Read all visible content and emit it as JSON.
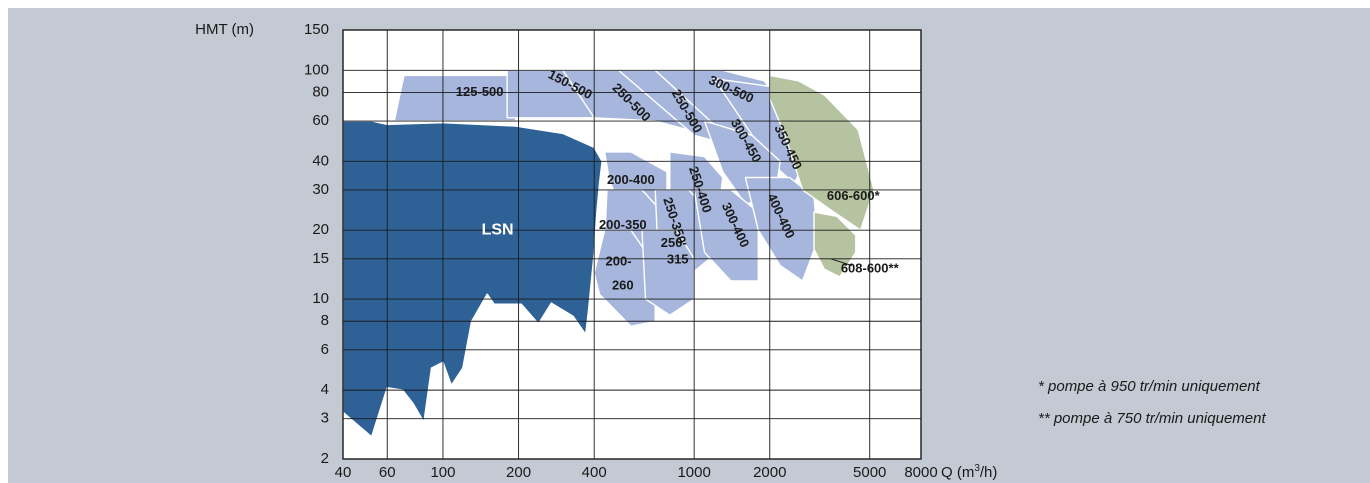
{
  "chart_data": {
    "type": "area",
    "title": "",
    "ylabel": "HMT (m)",
    "xlabel_prefix": "Q (m",
    "xlabel_sup": "3",
    "xlabel_suffix": "/h)",
    "xscale": "log",
    "yscale": "log",
    "xlim": [
      40,
      8000
    ],
    "ylim": [
      2,
      150
    ],
    "xticks": [
      "40",
      "60",
      "100",
      "200",
      "400",
      "1000",
      "2000",
      "5000",
      "8000"
    ],
    "yticks": [
      "150",
      "100",
      "80",
      "60",
      "40",
      "30",
      "20",
      "15",
      "10",
      "8",
      "6",
      "4",
      "3",
      "2"
    ],
    "grid": true,
    "colors": {
      "lsn": "#2e6297",
      "light": "#a6b6dc",
      "green": "#b6c3a0",
      "edge": "#ffffff"
    },
    "regions": [
      {
        "name": "125-500",
        "color": "light",
        "poly": [
          [
            52,
            60
          ],
          [
            64,
            60
          ],
          [
            70,
            95
          ],
          [
            195,
            95
          ],
          [
            195,
            60
          ],
          [
            52,
            60
          ]
        ]
      },
      {
        "name": "150-500",
        "color": "light",
        "poly": [
          [
            180,
            100
          ],
          [
            400,
            100
          ],
          [
            560,
            92
          ],
          [
            700,
            78
          ],
          [
            460,
            62
          ],
          [
            300,
            62
          ],
          [
            180,
            62
          ]
        ]
      },
      {
        "name": "250-500",
        "color": "light",
        "poly": [
          [
            300,
            100
          ],
          [
            600,
            100
          ],
          [
            900,
            92
          ],
          [
            1050,
            72
          ],
          [
            1000,
            54
          ],
          [
            700,
            60
          ],
          [
            400,
            62
          ]
        ]
      },
      {
        "name": "250-500b",
        "color": "light",
        "poly": [
          [
            500,
            100
          ],
          [
            900,
            100
          ],
          [
            1300,
            90
          ],
          [
            1500,
            70
          ],
          [
            1300,
            48
          ],
          [
            1000,
            52
          ]
        ]
      },
      {
        "name": "300-500",
        "color": "light",
        "poly": [
          [
            700,
            100
          ],
          [
            1300,
            100
          ],
          [
            1900,
            90
          ],
          [
            2300,
            68
          ],
          [
            2000,
            42
          ],
          [
            1600,
            50
          ],
          [
            1200,
            58
          ]
        ]
      },
      {
        "name": "350-450",
        "color": "light",
        "poly": [
          [
            1200,
            92
          ],
          [
            2000,
            85
          ],
          [
            2700,
            62
          ],
          [
            2900,
            44
          ],
          [
            2500,
            32
          ],
          [
            2000,
            40
          ]
        ]
      },
      {
        "name": "200-400",
        "color": "light",
        "poly": [
          [
            440,
            44
          ],
          [
            560,
            44
          ],
          [
            780,
            36
          ],
          [
            780,
            20
          ],
          [
            620,
            18
          ],
          [
            520,
            24
          ],
          [
            460,
            33
          ]
        ]
      },
      {
        "name": "250-400",
        "color": "light",
        "poly": [
          [
            800,
            44
          ],
          [
            1100,
            42
          ],
          [
            1300,
            34
          ],
          [
            1250,
            24
          ],
          [
            1000,
            20
          ],
          [
            800,
            26
          ]
        ]
      },
      {
        "name": "300-450",
        "color": "light",
        "poly": [
          [
            1100,
            60
          ],
          [
            1700,
            52
          ],
          [
            2200,
            40
          ],
          [
            2100,
            28
          ],
          [
            1600,
            26
          ],
          [
            1300,
            36
          ]
        ]
      },
      {
        "name": "200-350",
        "color": "light",
        "poly": [
          [
            450,
            30
          ],
          [
            620,
            30
          ],
          [
            800,
            22
          ],
          [
            800,
            13
          ],
          [
            620,
            10.5
          ],
          [
            500,
            13
          ],
          [
            440,
            18
          ]
        ]
      },
      {
        "name": "250-350",
        "color": "light",
        "poly": [
          [
            700,
            30
          ],
          [
            950,
            30
          ],
          [
            1150,
            24
          ],
          [
            1150,
            15
          ],
          [
            900,
            12
          ],
          [
            720,
            15
          ]
        ]
      },
      {
        "name": "300-400",
        "color": "light",
        "poly": [
          [
            1000,
            30
          ],
          [
            1400,
            30
          ],
          [
            1800,
            24
          ],
          [
            1800,
            12
          ],
          [
            1400,
            12
          ],
          [
            1100,
            16
          ]
        ]
      },
      {
        "name": "400-400",
        "color": "light",
        "poly": [
          [
            1600,
            34
          ],
          [
            2400,
            34
          ],
          [
            3000,
            28
          ],
          [
            3100,
            18
          ],
          [
            2700,
            12
          ],
          [
            2200,
            14
          ],
          [
            1800,
            20
          ]
        ]
      },
      {
        "name": "200-260",
        "color": "light",
        "poly": [
          [
            440,
            20
          ],
          [
            560,
            20
          ],
          [
            700,
            14
          ],
          [
            700,
            8
          ],
          [
            560,
            7.6
          ],
          [
            420,
            10.5
          ],
          [
            400,
            13
          ]
        ]
      },
      {
        "name": "250-315",
        "color": "light",
        "poly": [
          [
            620,
            20
          ],
          [
            850,
            20
          ],
          [
            1000,
            15
          ],
          [
            1000,
            10
          ],
          [
            800,
            8.5
          ],
          [
            640,
            10
          ]
        ]
      },
      {
        "name": "606-600*",
        "color": "green",
        "poly": [
          [
            2000,
            95
          ],
          [
            2600,
            90
          ],
          [
            3300,
            78
          ],
          [
            4500,
            55
          ],
          [
            5200,
            30
          ],
          [
            4600,
            20
          ],
          [
            3600,
            24
          ],
          [
            2700,
            30
          ],
          [
            2300,
            52
          ],
          [
            2000,
            75
          ]
        ]
      },
      {
        "name": "608-600**",
        "color": "green",
        "poly": [
          [
            3000,
            24
          ],
          [
            3700,
            23
          ],
          [
            4400,
            19
          ],
          [
            4400,
            16
          ],
          [
            3800,
            12.5
          ],
          [
            3300,
            13.5
          ],
          [
            3000,
            16.5
          ]
        ]
      },
      {
        "name": "LSN",
        "color": "lsn",
        "poly": [
          [
            40,
            60
          ],
          [
            52,
            60
          ],
          [
            60,
            58
          ],
          [
            100,
            59
          ],
          [
            195,
            57
          ],
          [
            300,
            53
          ],
          [
            400,
            46
          ],
          [
            430,
            40
          ],
          [
            420,
            32
          ],
          [
            410,
            24
          ],
          [
            400,
            16
          ],
          [
            390,
            12
          ],
          [
            380,
            9
          ],
          [
            370,
            7
          ],
          [
            330,
            8.4
          ],
          [
            270,
            9.6
          ],
          [
            240,
            7.8
          ],
          [
            205,
            9.5
          ],
          [
            185,
            9.5
          ],
          [
            160,
            9.5
          ],
          [
            150,
            10.5
          ],
          [
            130,
            8
          ],
          [
            120,
            5
          ],
          [
            108,
            4.2
          ],
          [
            100,
            5.3
          ],
          [
            90,
            5
          ],
          [
            84,
            2.9
          ],
          [
            76,
            3.5
          ],
          [
            69,
            4.0
          ],
          [
            60,
            4.1
          ],
          [
            52,
            2.5
          ],
          [
            40,
            3.2
          ]
        ]
      }
    ],
    "labels": [
      {
        "text": "125-500",
        "x": 140,
        "y": 80,
        "angle": 0
      },
      {
        "text": "150-500",
        "x": 320,
        "y": 86,
        "angle": 28
      },
      {
        "text": "250-500",
        "x": 560,
        "y": 72,
        "angle": 45
      },
      {
        "text": "250-500",
        "x": 930,
        "y": 66,
        "angle": 60
      },
      {
        "text": "300-500",
        "x": 1400,
        "y": 82,
        "angle": 25
      },
      {
        "text": "300-450",
        "x": 1600,
        "y": 49,
        "angle": 60
      },
      {
        "text": "350-450",
        "x": 2350,
        "y": 46,
        "angle": 65
      },
      {
        "text": "200-400",
        "x": 560,
        "y": 33,
        "angle": 0
      },
      {
        "text": "250-400",
        "x": 1050,
        "y": 30,
        "angle": 72
      },
      {
        "text": "250-350",
        "x": 830,
        "y": 22,
        "angle": 72
      },
      {
        "text": "200-350",
        "x": 520,
        "y": 21,
        "angle": 0
      },
      {
        "text": "250-",
        "x": 830,
        "y": 17.5,
        "angle": 0
      },
      {
        "text": "315",
        "x": 860,
        "y": 14.8,
        "angle": 0
      },
      {
        "text": "300-400",
        "x": 1450,
        "y": 21,
        "angle": 65
      },
      {
        "text": "400-400",
        "x": 2200,
        "y": 23,
        "angle": 65
      },
      {
        "text": "200-",
        "x": 500,
        "y": 14.5,
        "angle": 0
      },
      {
        "text": "260",
        "x": 520,
        "y": 11.4,
        "angle": 0
      },
      {
        "text": "606-600*",
        "x": 4300,
        "y": 28,
        "angle": 0
      },
      {
        "text": "608-600**",
        "x": 5000,
        "y": 13.5,
        "angle": 0
      }
    ],
    "lsn_label": {
      "text": "LSN",
      "x": 165,
      "y": 20
    },
    "leader": {
      "from": [
        3500,
        15
      ],
      "to": [
        4250,
        14
      ]
    }
  },
  "notes": {
    "note1": "* pompe à 950 tr/min uniquement",
    "note2": "** pompe à 750 tr/min uniquement"
  }
}
